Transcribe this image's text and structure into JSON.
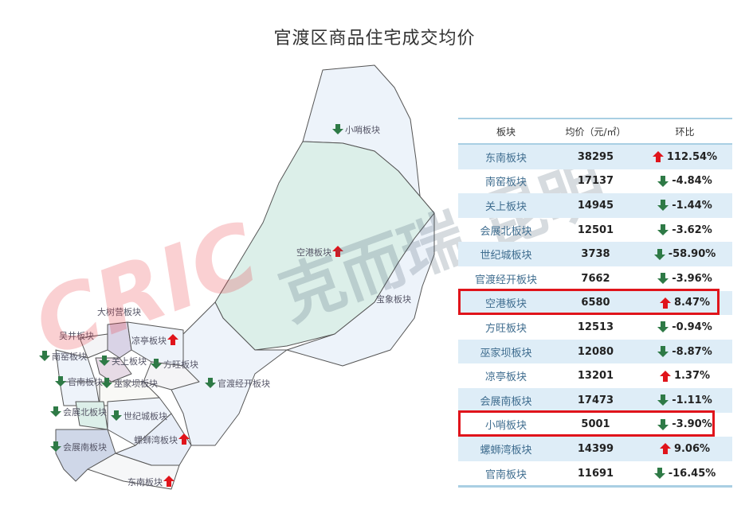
{
  "title": "官渡区商品住宅成交均价",
  "watermark": "CRIC 克而瑞 昆明",
  "colors": {
    "up": "#e0141b",
    "down": "#2e7a46",
    "highlight": "#e0141b",
    "row_alt": "#deedf7"
  },
  "table": {
    "headers": [
      "板块",
      "均价（元/㎡）",
      "环比"
    ],
    "rows": [
      {
        "name": "东南板块",
        "price": "38295",
        "dir": "up",
        "change": "112.54%"
      },
      {
        "name": "南窑板块",
        "price": "17137",
        "dir": "down",
        "change": "-4.84%"
      },
      {
        "name": "关上板块",
        "price": "14945",
        "dir": "down",
        "change": "-1.44%"
      },
      {
        "name": "会展北板块",
        "price": "12501",
        "dir": "down",
        "change": "-3.62%"
      },
      {
        "name": "世纪城板块",
        "price": "3738",
        "dir": "down",
        "change": "-58.90%"
      },
      {
        "name": "官渡经开板块",
        "price": "7662",
        "dir": "down",
        "change": "-3.96%"
      },
      {
        "name": "空港板块",
        "price": "6580",
        "dir": "up",
        "change": "8.47%",
        "highlighted": true
      },
      {
        "name": "方旺板块",
        "price": "12513",
        "dir": "down",
        "change": "-0.94%"
      },
      {
        "name": "巫家坝板块",
        "price": "12080",
        "dir": "down",
        "change": "-8.87%"
      },
      {
        "name": "凉亭板块",
        "price": "13201",
        "dir": "up",
        "change": "1.37%"
      },
      {
        "name": "会展南板块",
        "price": "17473",
        "dir": "down",
        "change": "-1.11%"
      },
      {
        "name": "小哨板块",
        "price": "5001",
        "dir": "down",
        "change": "-3.90%",
        "highlighted": true
      },
      {
        "name": "螺蛳湾板块",
        "price": "14399",
        "dir": "up",
        "change": "9.06%"
      },
      {
        "name": "官南板块",
        "price": "11691",
        "dir": "down",
        "change": "-16.45%"
      }
    ]
  },
  "map_labels": [
    {
      "text": "小哨板块",
      "dir": "down"
    },
    {
      "text": "空港板块",
      "dir": "up"
    },
    {
      "text": "宝象板块",
      "dir": "none"
    },
    {
      "text": "大树营板块",
      "dir": "none"
    },
    {
      "text": "吴井板块",
      "dir": "none"
    },
    {
      "text": "凉亭板块",
      "dir": "up"
    },
    {
      "text": "南窑板块",
      "dir": "down"
    },
    {
      "text": "关上板块",
      "dir": "down"
    },
    {
      "text": "方旺板块",
      "dir": "down"
    },
    {
      "text": "官南板块",
      "dir": "down"
    },
    {
      "text": "巫家坝板块",
      "dir": "down"
    },
    {
      "text": "官渡经开板块",
      "dir": "down"
    },
    {
      "text": "会展北板块",
      "dir": "down"
    },
    {
      "text": "世纪城板块",
      "dir": "down"
    },
    {
      "text": "会展南板块",
      "dir": "down"
    },
    {
      "text": "螺蛳湾板块",
      "dir": "up"
    },
    {
      "text": "东南板块",
      "dir": "up"
    }
  ]
}
